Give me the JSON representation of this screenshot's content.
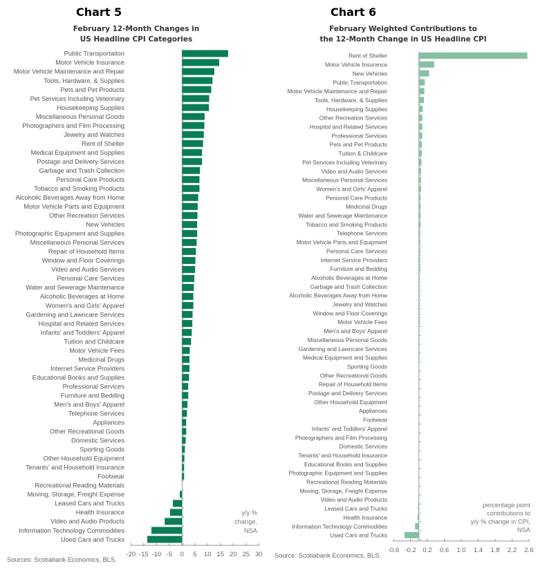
{
  "colors": {
    "chart5_bar": "#0b7d55",
    "chart6_bar": "#86c0a0",
    "axis": "#888888"
  },
  "chart_data": [
    {
      "type": "bar",
      "orientation": "horizontal",
      "chart_number": "Chart 5",
      "title": [
        "February 12-Month Changes in",
        "US Headline CPI Categories"
      ],
      "annotation": [
        "y/y %",
        "change,",
        "NSA"
      ],
      "source": "Sources: Scotiabank Economics, BLS.",
      "xlim": [
        -20,
        30
      ],
      "xticks": [
        -20,
        -15,
        -10,
        -5,
        0,
        5,
        10,
        15,
        20,
        25,
        30
      ],
      "categories": [
        "Public Transportation",
        "Motor Vehicle Insurance",
        "Motor Vehicle Maintenance and Repair",
        "Tools, Hardware, & Supplies",
        "Pets and Pet Products",
        "Pet Services Including Veterinary",
        "Housekeeping Supplies",
        "Miscellaneous Personal Goods",
        "Photographers and Film Processing",
        "Jewelry and Watches",
        "Rent of Shelter",
        "Medical Equipment and Supplies",
        "Postage and Delivery Services",
        "Garbage and Trash Collection",
        "Personal Care Products",
        "Tobacco and Smoking Products",
        "Alcoholic Beverages Away from Home",
        "Motor Vehicle Parts and Equipment",
        "Other Recreation Services",
        "New Vehicles",
        "Photographic Equipment and Supplies",
        "Miscellaneous Personal Services",
        "Repair of Household Items",
        "Window and Floor Coverings",
        "Video and Audio Services",
        "Personal Care Services",
        "Water and Sewerage Maintenance",
        "Alcoholic Beverages at Home",
        "Women's and Girls' Apparel",
        "Gardening and Lawncare Services",
        "Hospital and Related Services",
        "Infants' and Toddlers' Apparel",
        "Tuition and Childcare",
        "Motor Vehicle Fees",
        "Medicinal Drugs",
        "Internet Service Providers",
        "Educational Books and Supplies",
        "Professional Services",
        "Furniture and Bedding",
        "Men's and Boys' Apparel",
        "Telephone Services",
        "Appliances",
        "Other Recreational Goods",
        "Domestic Services",
        "Sporting Goods",
        "Other Household Equipment",
        "Tenants' and Household Insurance",
        "Footwear",
        "Recreational Reading Materials",
        "Moving, Storage, Freight Expense",
        "Leased Cars and Trucks",
        "Health Insurance",
        "Video and Audio Products",
        "Information Technology Commodities",
        "Used Cars and Trucks"
      ],
      "values": [
        18.0,
        14.5,
        12.6,
        11.9,
        11.4,
        10.6,
        10.5,
        8.8,
        8.7,
        8.5,
        8.2,
        7.8,
        7.8,
        7.0,
        6.8,
        6.8,
        6.3,
        6.1,
        6.0,
        5.9,
        5.9,
        5.7,
        5.4,
        5.2,
        5.1,
        4.8,
        4.6,
        4.4,
        4.4,
        4.1,
        4.0,
        3.8,
        3.5,
        3.0,
        2.9,
        2.9,
        2.7,
        2.4,
        2.4,
        2.1,
        1.9,
        1.6,
        1.6,
        1.4,
        1.1,
        0.9,
        0.8,
        0.8,
        0.0,
        -0.9,
        -3.6,
        -4.7,
        -6.8,
        -12.0,
        -13.6
      ]
    },
    {
      "type": "bar",
      "orientation": "horizontal",
      "chart_number": "Chart 6",
      "title": [
        "February Weighted Contributions to",
        "the 12-Month Change in US Headline CPI"
      ],
      "annotation": [
        "percentage point",
        "contributions to",
        "y/y % change in CPI,",
        "NSA"
      ],
      "source": "Source: Scotiabank Economics, BLS.",
      "xlim": [
        -0.6,
        2.6
      ],
      "xticks": [
        "-0.6",
        "-0.2",
        "0.2",
        "0.6",
        "1.0",
        "1.4",
        "1.8",
        "2.2",
        "2.6"
      ],
      "categories": [
        "Rent of Shelter",
        "Motor Vehicle Insurance",
        "New Vehicles",
        "Public Transportation",
        "Motor Vehicle Maintenance and Repair",
        "Tools, Hardware, & Supplies",
        "Housekeeping Supplies",
        "Other Recreation Services",
        "Hospital and Related Services",
        "Professional Services",
        "Pets and Pet Products",
        "Tuition & Childcare",
        "Pet Services Including Veterinary",
        "Video and Audio Services",
        "Miscellaneous Personal Services",
        "Women's and Girls' Apparel",
        "Personal Care Products",
        "Medicinal Drugs",
        "Water and Sewerage Maintenance",
        "Tobacco and Smoking Products",
        "Telephone Services",
        "Motor Vehicle Parts and Equipment",
        "Personal Care Services",
        "Internet Service Providers",
        "Furniture and Bedding",
        "Alcoholic Beverages at Home",
        "Garbage and Trash Collection",
        "Alcoholic Beverages Away from Home",
        "Jewelry and Watches",
        "Window and Floor Coverings",
        "Motor Vehicle Fees",
        "Men's and Boys' Apparel",
        "Miscellaneous Personal Goods",
        "Gardening and Lawncare Services",
        "Medical Equipment and Supplies",
        "Sporting Goods",
        "Other Recreational Goods",
        "Repair of Household Items",
        "Postage and Delivery Services",
        "Other Household Equipment",
        "Appliances",
        "Footwear",
        "Infants' and Toddlers' Apparel",
        "Photographers and Film Processing",
        "Domestic Services",
        "Tenants' and Household Insurance",
        "Educational Books and Supplies",
        "Photographic Equipment and Supplies",
        "Recreational Reading Materials",
        "Moving, Storage, Freight Expense",
        "Video and Audio Products",
        "Leased Cars and Trucks",
        "Health Insurance",
        "Information Technology Commodities",
        "Used Cars and Trucks"
      ],
      "values": [
        2.56,
        0.36,
        0.24,
        0.14,
        0.13,
        0.12,
        0.09,
        0.08,
        0.08,
        0.08,
        0.07,
        0.07,
        0.06,
        0.05,
        0.05,
        0.05,
        0.04,
        0.04,
        0.04,
        0.04,
        0.03,
        0.03,
        0.03,
        0.03,
        0.03,
        0.02,
        0.02,
        0.02,
        0.02,
        0.02,
        0.02,
        0.015,
        0.015,
        0.015,
        0.015,
        0.01,
        0.01,
        0.01,
        0.01,
        0.01,
        0.01,
        0.008,
        0.006,
        0.005,
        0.005,
        0.004,
        0.003,
        0.002,
        0.0,
        -0.002,
        -0.01,
        -0.02,
        -0.03,
        -0.09,
        -0.34
      ]
    }
  ]
}
